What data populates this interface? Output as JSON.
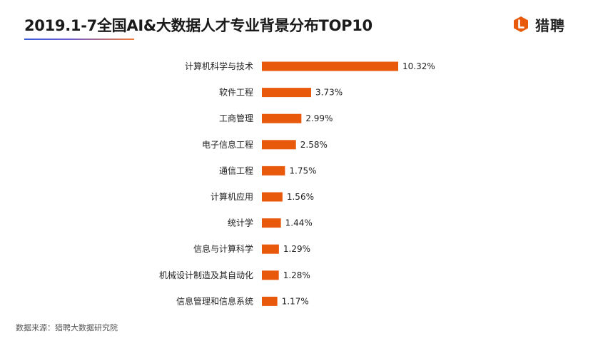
{
  "header": {
    "title": "2019.1-7全国AI&大数据人才专业背景分布TOP10",
    "logo_text": "猎聘",
    "logo_icon": "liepin-logo-icon",
    "accent_color": "#e8590c"
  },
  "footer": {
    "source": "数据来源：猎聘大数据研究院"
  },
  "chart_data": {
    "type": "bar",
    "orientation": "horizontal",
    "title": "2019.1-7全国AI&大数据人才专业背景分布TOP10",
    "categories": [
      "计算机科学与技术",
      "软件工程",
      "工商管理",
      "电子信息工程",
      "通信工程",
      "计算机应用",
      "统计学",
      "信息与计算科学",
      "机械设计制造及其自动化",
      "信息管理和信息系统"
    ],
    "values": [
      10.32,
      3.73,
      2.99,
      2.58,
      1.75,
      1.56,
      1.44,
      1.29,
      1.28,
      1.17
    ],
    "value_labels": [
      "10.32%",
      "3.73%",
      "2.99%",
      "2.58%",
      "1.75%",
      "1.56%",
      "1.44%",
      "1.29%",
      "1.28%",
      "1.17%"
    ],
    "unit": "%",
    "xlim": [
      0,
      10.32
    ],
    "grid": false,
    "bar_color": "#e8590c"
  }
}
